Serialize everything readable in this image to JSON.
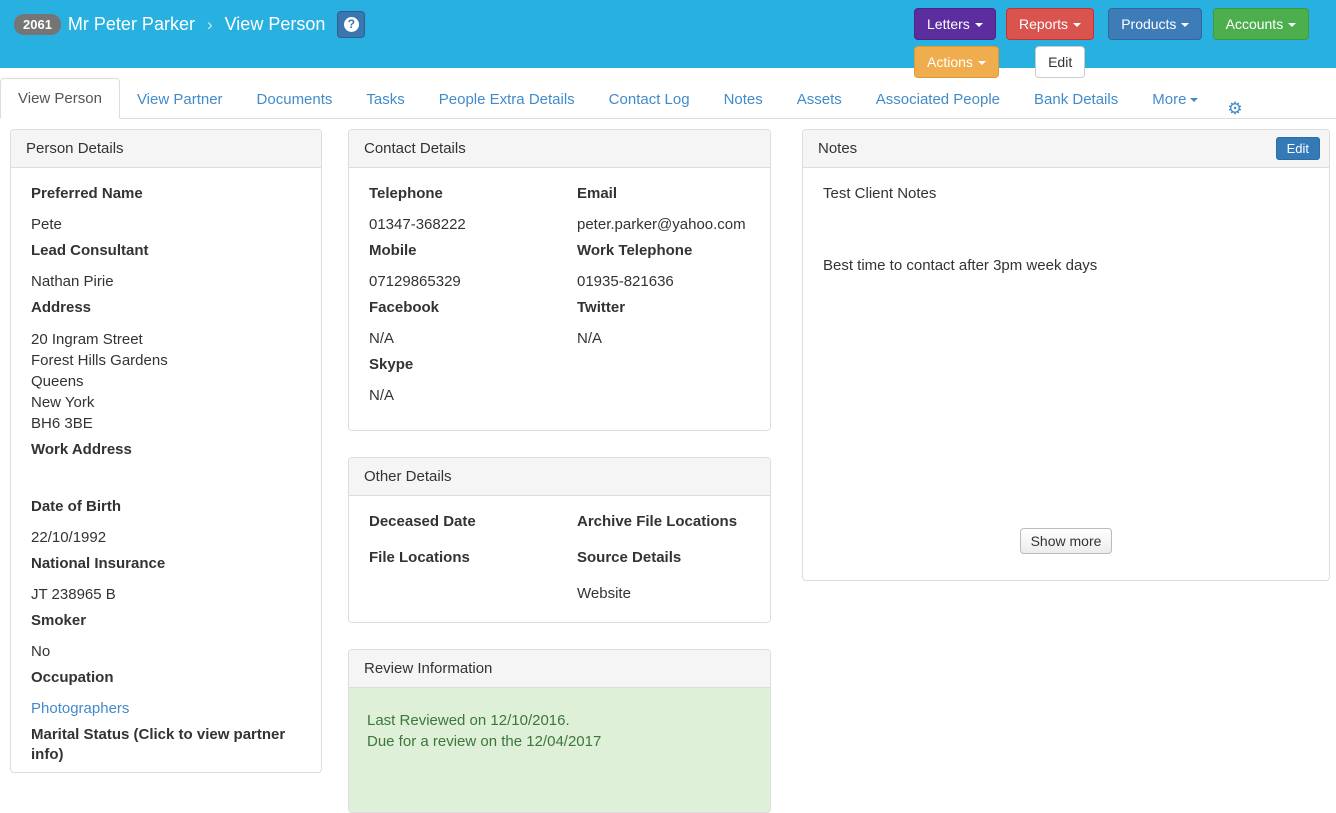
{
  "header": {
    "client_id": "2061",
    "client_name": "Mr Peter Parker",
    "separator": "›",
    "page_title": "View Person",
    "help_label": "?",
    "buttons": {
      "letters": "Letters",
      "reports": "Reports",
      "products": "Products",
      "accounts": "Accounts",
      "actions": "Actions",
      "edit": "Edit"
    },
    "colors": {
      "background": "#28b0e0",
      "letters": "#5c2d9e",
      "reports": "#d9534f",
      "products": "#3e7cb8",
      "accounts": "#4cae4c",
      "actions": "#f0ad4e",
      "help_button": "#3a76b0",
      "badge": "#757575"
    }
  },
  "tabs": {
    "active": "View Person",
    "items": [
      "View Person",
      "View Partner",
      "Documents",
      "Tasks",
      "People Extra Details",
      "Contact Log",
      "Notes",
      "Assets",
      "Associated People",
      "Bank Details"
    ],
    "more_label": "More",
    "gear_icon": "⚙",
    "link_color": "#428bca"
  },
  "person_details": {
    "title": "Person Details",
    "fields": [
      {
        "label": "Preferred Name",
        "value": "Pete"
      },
      {
        "label": "Lead Consultant",
        "value": "Nathan Pirie"
      },
      {
        "label": "Address",
        "lines": [
          "20 Ingram Street",
          "Forest Hills Gardens",
          "Queens",
          "New York",
          "BH6 3BE"
        ]
      },
      {
        "label": "Work Address",
        "value": ""
      },
      {
        "label": "Date of Birth",
        "value": "22/10/1992"
      },
      {
        "label": "National Insurance",
        "value": "JT 238965 B"
      },
      {
        "label": "Smoker",
        "value": "No"
      },
      {
        "label": "Occupation",
        "value": "Photographers"
      },
      {
        "label": "Marital Status (Click to view partner info)"
      }
    ]
  },
  "contact_details": {
    "title": "Contact Details",
    "left": [
      {
        "label": "Telephone",
        "value": "01347-368222"
      },
      {
        "label": "Mobile",
        "value": "07129865329"
      },
      {
        "label": "Facebook",
        "value": "N/A"
      },
      {
        "label": "Skype",
        "value": "N/A"
      }
    ],
    "right": [
      {
        "label": "Email",
        "value": "peter.parker@yahoo.com"
      },
      {
        "label": "Work Telephone",
        "value": "01935-821636"
      },
      {
        "label": "Twitter",
        "value": "N/A"
      }
    ]
  },
  "other_details": {
    "title": "Other Details",
    "left": [
      {
        "label": "Deceased Date",
        "value": ""
      },
      {
        "label": "File Locations",
        "value": ""
      }
    ],
    "right": [
      {
        "label": "Archive File Locations",
        "value": ""
      },
      {
        "label": "Source Details",
        "value": "Website"
      }
    ]
  },
  "review_information": {
    "title": "Review Information",
    "lines": [
      "Last Reviewed on 12/10/2016.",
      "Due for a review on the 12/04/2017"
    ],
    "colors": {
      "background": "#dff0d8",
      "text": "#3c763d"
    }
  },
  "notes": {
    "title": "Notes",
    "edit_label": "Edit",
    "lines": [
      "Test Client Notes",
      "Best time to contact after 3pm week days"
    ],
    "show_more_label": "Show more"
  }
}
